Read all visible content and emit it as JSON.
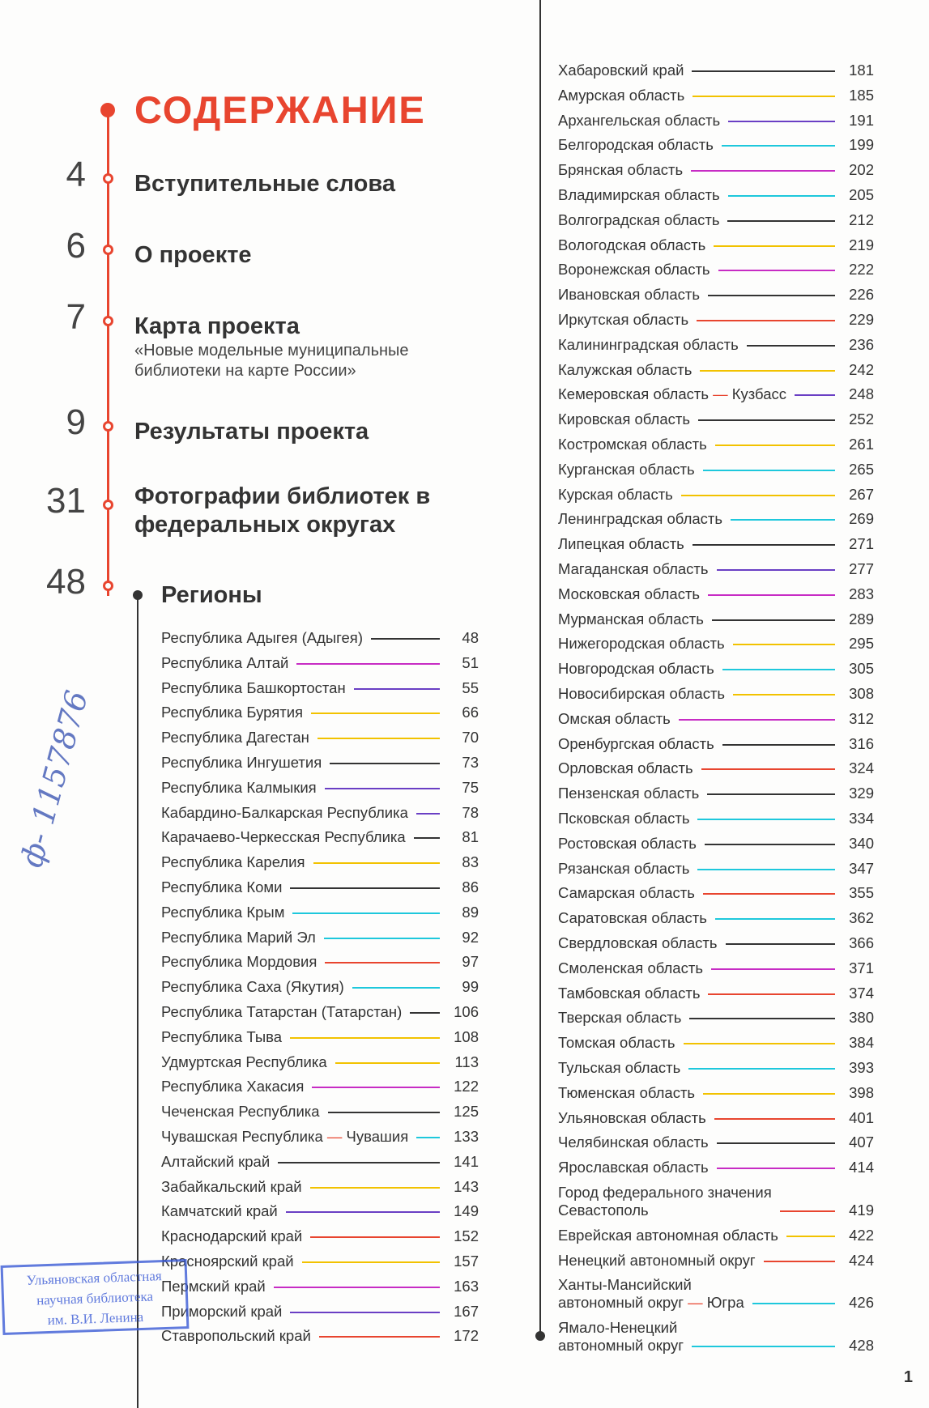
{
  "title": "СОДЕРЖАНИЕ",
  "sections": [
    {
      "page": "4",
      "title": "Вступительные слова",
      "subtitle": ""
    },
    {
      "page": "6",
      "title": "О проекте",
      "subtitle": ""
    },
    {
      "page": "7",
      "title": "Карта проекта",
      "subtitle": "«Новые модельные муниципальные библиотеки на карте России»"
    },
    {
      "page": "9",
      "title": "Результаты проекта",
      "subtitle": ""
    },
    {
      "page": "31",
      "title": "Фотографии библиотек в федеральных округах",
      "subtitle": ""
    },
    {
      "page": "48",
      "title": "Регионы",
      "subtitle": ""
    }
  ],
  "colors": {
    "accent": "#e8452f",
    "black": "#333333",
    "yellow": "#f2c200",
    "purple": "#6a3fc4",
    "cyan": "#1ec8dc",
    "magenta": "#c72cc4",
    "red": "#e8452f",
    "stamp": "#3b5bd6"
  },
  "regions_left": [
    {
      "name": "Республика Адыгея (Адыгея)",
      "page": "48",
      "color": "black"
    },
    {
      "name": "Республика Алтай",
      "page": "51",
      "color": "magenta"
    },
    {
      "name": "Республика Башкортостан",
      "page": "55",
      "color": "purple"
    },
    {
      "name": "Республика Бурятия",
      "page": "66",
      "color": "yellow"
    },
    {
      "name": "Республика Дагестан",
      "page": "70",
      "color": "yellow"
    },
    {
      "name": "Республика Ингушетия",
      "page": "73",
      "color": "black"
    },
    {
      "name": "Республика Калмыкия",
      "page": "75",
      "color": "purple"
    },
    {
      "name": "Кабардино-Балкарская Республика",
      "page": "78",
      "color": "purple"
    },
    {
      "name": "Карачаево-Черкесская Республика",
      "page": "81",
      "color": "black"
    },
    {
      "name": "Республика Карелия",
      "page": "83",
      "color": "yellow"
    },
    {
      "name": "Республика Коми",
      "page": "86",
      "color": "black"
    },
    {
      "name": "Республика Крым",
      "page": "89",
      "color": "cyan"
    },
    {
      "name": "Республика Марий Эл",
      "page": "92",
      "color": "cyan"
    },
    {
      "name": "Республика Мордовия",
      "page": "97",
      "color": "red"
    },
    {
      "name": "Республика Саха (Якутия)",
      "page": "99",
      "color": "cyan"
    },
    {
      "name": "Республика Татарстан (Татарстан)",
      "page": "106",
      "color": "black"
    },
    {
      "name": "Республика Тыва",
      "page": "108",
      "color": "yellow"
    },
    {
      "name": "Удмуртская Республика",
      "page": "113",
      "color": "yellow"
    },
    {
      "name": "Республика Хакасия",
      "page": "122",
      "color": "magenta"
    },
    {
      "name": "Чеченская Республика",
      "page": "125",
      "color": "black"
    },
    {
      "name": "Чувашская Республика",
      "name_suffix": "Чувашия",
      "page": "133",
      "color": "cyan"
    },
    {
      "name": "Алтайский край",
      "page": "141",
      "color": "black"
    },
    {
      "name": "Забайкальский край",
      "page": "143",
      "color": "yellow"
    },
    {
      "name": "Камчатский край",
      "page": "149",
      "color": "purple"
    },
    {
      "name": "Краснодарский край",
      "page": "152",
      "color": "red"
    },
    {
      "name": "Красноярский край",
      "page": "157",
      "color": "yellow"
    },
    {
      "name": "Пермский край",
      "page": "163",
      "color": "magenta"
    },
    {
      "name": "Приморский край",
      "page": "167",
      "color": "purple"
    },
    {
      "name": "Ставропольский край",
      "page": "172",
      "color": "red"
    }
  ],
  "regions_right": [
    {
      "name": "Хабаровский край",
      "page": "181",
      "color": "black"
    },
    {
      "name": "Амурская область",
      "page": "185",
      "color": "yellow"
    },
    {
      "name": "Архангельская область",
      "page": "191",
      "color": "purple"
    },
    {
      "name": "Белгородская область",
      "page": "199",
      "color": "cyan"
    },
    {
      "name": "Брянская область",
      "page": "202",
      "color": "magenta"
    },
    {
      "name": "Владимирская область",
      "page": "205",
      "color": "cyan"
    },
    {
      "name": "Волгоградская область",
      "page": "212",
      "color": "black"
    },
    {
      "name": "Вологодская область",
      "page": "219",
      "color": "yellow"
    },
    {
      "name": "Воронежская область",
      "page": "222",
      "color": "magenta"
    },
    {
      "name": "Ивановская область",
      "page": "226",
      "color": "black"
    },
    {
      "name": "Иркутская область",
      "page": "229",
      "color": "red"
    },
    {
      "name": "Калининградская область",
      "page": "236",
      "color": "black"
    },
    {
      "name": "Калужская область",
      "page": "242",
      "color": "yellow"
    },
    {
      "name": "Кемеровская область",
      "name_suffix": "Кузбасс",
      "page": "248",
      "color": "purple"
    },
    {
      "name": "Кировская область",
      "page": "252",
      "color": "black"
    },
    {
      "name": "Костромская область",
      "page": "261",
      "color": "yellow"
    },
    {
      "name": "Курганская область",
      "page": "265",
      "color": "cyan"
    },
    {
      "name": "Курская область",
      "page": "267",
      "color": "yellow"
    },
    {
      "name": "Ленинградская область",
      "page": "269",
      "color": "cyan"
    },
    {
      "name": "Липецкая область",
      "page": "271",
      "color": "black"
    },
    {
      "name": "Магаданская область",
      "page": "277",
      "color": "purple"
    },
    {
      "name": "Московская область",
      "page": "283",
      "color": "magenta"
    },
    {
      "name": "Мурманская область",
      "page": "289",
      "color": "black"
    },
    {
      "name": "Нижегородская область",
      "page": "295",
      "color": "yellow"
    },
    {
      "name": "Новгородская область",
      "page": "305",
      "color": "cyan"
    },
    {
      "name": "Новосибирская область",
      "page": "308",
      "color": "yellow"
    },
    {
      "name": "Омская область",
      "page": "312",
      "color": "magenta"
    },
    {
      "name": "Оренбургская область",
      "page": "316",
      "color": "black"
    },
    {
      "name": "Орловская область",
      "page": "324",
      "color": "red"
    },
    {
      "name": "Пензенская область",
      "page": "329",
      "color": "black"
    },
    {
      "name": "Псковская область",
      "page": "334",
      "color": "cyan"
    },
    {
      "name": "Ростовская область",
      "page": "340",
      "color": "black"
    },
    {
      "name": "Рязанская область",
      "page": "347",
      "color": "cyan"
    },
    {
      "name": "Самарская область",
      "page": "355",
      "color": "red"
    },
    {
      "name": "Саратовская область",
      "page": "362",
      "color": "cyan"
    },
    {
      "name": "Свердловская область",
      "page": "366",
      "color": "black"
    },
    {
      "name": "Смоленская область",
      "page": "371",
      "color": "magenta"
    },
    {
      "name": "Тамбовская область",
      "page": "374",
      "color": "red"
    },
    {
      "name": "Тверская область",
      "page": "380",
      "color": "black"
    },
    {
      "name": "Томская область",
      "page": "384",
      "color": "yellow"
    },
    {
      "name": "Тульская область",
      "page": "393",
      "color": "cyan"
    },
    {
      "name": "Тюменская область",
      "page": "398",
      "color": "yellow"
    },
    {
      "name": "Ульяновская область",
      "page": "401",
      "color": "red"
    },
    {
      "name": "Челябинская область",
      "page": "407",
      "color": "black"
    },
    {
      "name": "Ярославская область",
      "page": "414",
      "color": "magenta"
    },
    {
      "name": "Город федерального значения",
      "name2": "Севастополь",
      "page": "419",
      "color": "red"
    },
    {
      "name": "Еврейская автономная область",
      "page": "422",
      "color": "yellow"
    },
    {
      "name": "Ненецкий автономный округ",
      "page": "424",
      "color": "red"
    },
    {
      "name": "Ханты-Мансийский",
      "name2": "автономный округ",
      "name2_suffix": "Югра",
      "page": "426",
      "color": "cyan"
    },
    {
      "name": "Ямало-Ненецкий",
      "name2": "автономный округ",
      "page": "428",
      "color": "cyan"
    }
  ],
  "page_number": "1",
  "stamp": {
    "line1": "Ульяновская областная",
    "line2": "научная библиотека",
    "line3": "им. В.И. Ленина"
  },
  "handwritten_note": "ф- 1157876"
}
